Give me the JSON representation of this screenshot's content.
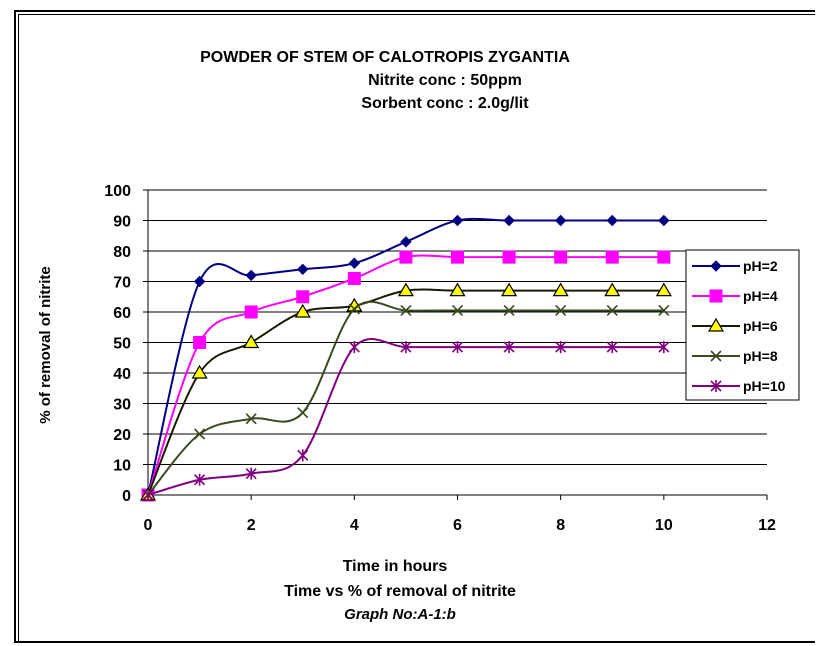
{
  "chart_data": {
    "type": "line",
    "title": "POWDER OF STEM OF CALOTROPIS ZYGANTIA",
    "subtitle_lines": [
      "Nitrite conc : 50ppm",
      "Sorbent conc : 2.0g/lit"
    ],
    "xlabel": "Time in hours",
    "ylabel": "% of removal of nitrite",
    "caption": "Time  vs % of removal of nitrite",
    "graph_no": "Graph No:A-1:b",
    "xlim": [
      0,
      12
    ],
    "ylim": [
      0,
      100
    ],
    "x_ticks": [
      0,
      2,
      4,
      6,
      8,
      10,
      12
    ],
    "y_ticks": [
      0,
      10,
      20,
      30,
      40,
      50,
      60,
      70,
      80,
      90,
      100
    ],
    "grid": "horizontal",
    "legend_position": "right",
    "x": [
      0,
      1,
      2,
      3,
      4,
      5,
      6,
      7,
      8,
      9,
      10
    ],
    "series": [
      {
        "name": "pH=2",
        "color": "#000080",
        "marker": "diamond",
        "values": [
          0,
          70,
          72,
          74,
          76,
          83,
          90,
          90,
          90,
          90,
          90
        ]
      },
      {
        "name": "pH=4",
        "color": "#ff00ff",
        "marker": "square",
        "values": [
          0,
          50,
          60,
          65,
          71,
          78,
          78,
          78,
          78,
          78,
          78
        ]
      },
      {
        "name": "pH=6",
        "color": "#1a1a00",
        "marker": "triangle",
        "values": [
          0,
          40,
          50,
          60,
          62,
          67,
          67,
          67,
          67,
          67,
          67
        ]
      },
      {
        "name": "pH=8",
        "color": "#3a4a20",
        "marker": "x",
        "values": [
          0,
          20,
          25,
          27,
          61,
          60.5,
          60.5,
          60.5,
          60.5,
          60.5,
          60.5
        ]
      },
      {
        "name": "pH=10",
        "color": "#800080",
        "marker": "star",
        "values": [
          0,
          5,
          7,
          13,
          48.5,
          48.5,
          48.5,
          48.5,
          48.5,
          48.5,
          48.5
        ]
      }
    ]
  }
}
